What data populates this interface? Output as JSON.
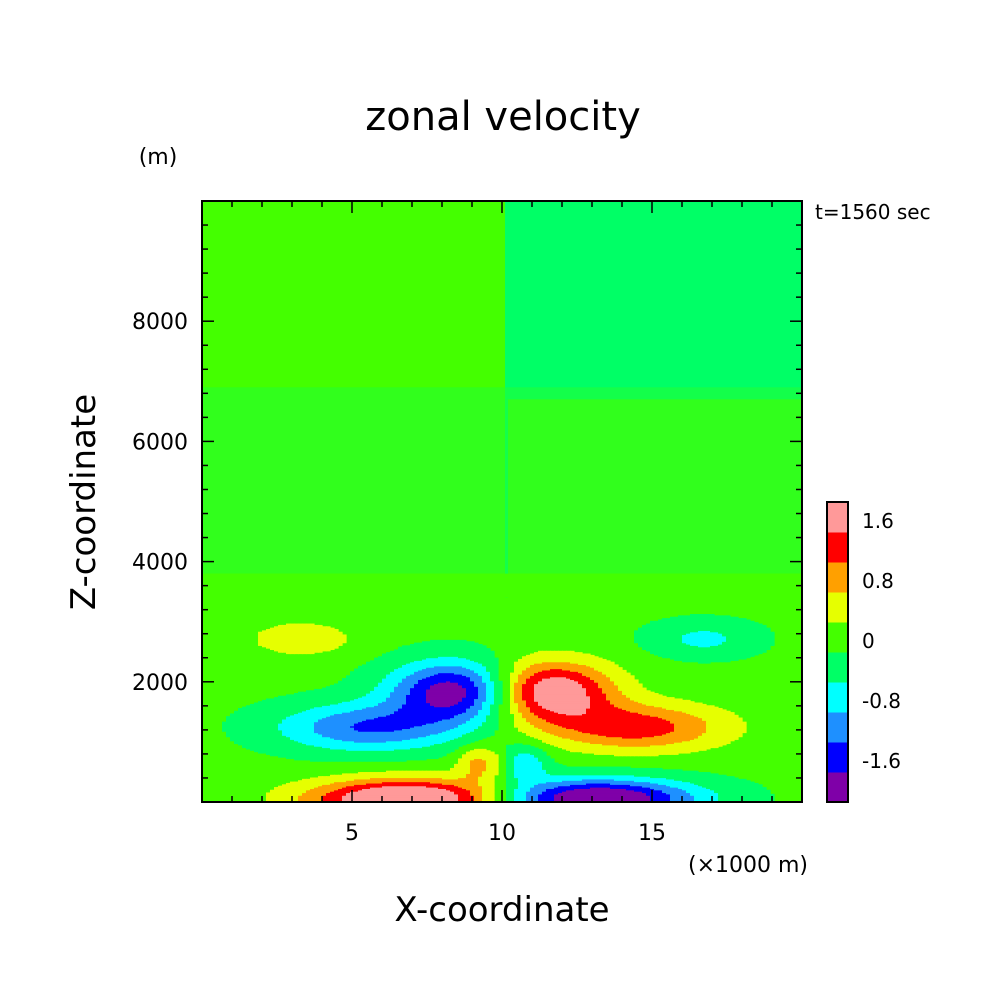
{
  "chart_data": {
    "type": "heatmap",
    "title": "zonal velocity",
    "xlabel": "X-coordinate",
    "ylabel": "Z-coordinate",
    "x_unit": "(×1000 m)",
    "y_unit": "(m)",
    "time_label": "t=1560 sec",
    "xlim": [
      0,
      20
    ],
    "ylim": [
      0,
      10000
    ],
    "x_ticks": [
      5,
      10,
      15
    ],
    "y_ticks": [
      2000,
      4000,
      6000,
      8000
    ],
    "colorbar": {
      "levels": [
        -2.0,
        -1.6,
        -1.2,
        -0.8,
        -0.4,
        0,
        0.4,
        0.8,
        1.2,
        1.6,
        2.0
      ],
      "colors": [
        "#7f00a8",
        "#0000ff",
        "#1e90ff",
        "#00ffff",
        "#00ff66",
        "#44ff00",
        "#e6ff00",
        "#ffa000",
        "#ff0000",
        "#ff9999"
      ],
      "tick_labels": [
        "1.6",
        "0.8",
        "0",
        "-0.8",
        "-1.6"
      ],
      "tick_values": [
        1.6,
        0.8,
        0,
        -0.8,
        -1.6
      ]
    },
    "field": {
      "description_free": true,
      "background_upper": 0.1,
      "features": [
        {
          "x": 3.3,
          "z": 2700,
          "value": 0.6
        },
        {
          "x": 16.7,
          "z": 2700,
          "value": -0.6
        },
        {
          "x": 8.5,
          "z": 1900,
          "value": -1.9
        },
        {
          "x": 11.5,
          "z": 1900,
          "value": 1.9
        },
        {
          "x": 6.5,
          "z": 100,
          "value": 2.1
        },
        {
          "x": 13.5,
          "z": 100,
          "value": -2.1
        }
      ]
    }
  }
}
